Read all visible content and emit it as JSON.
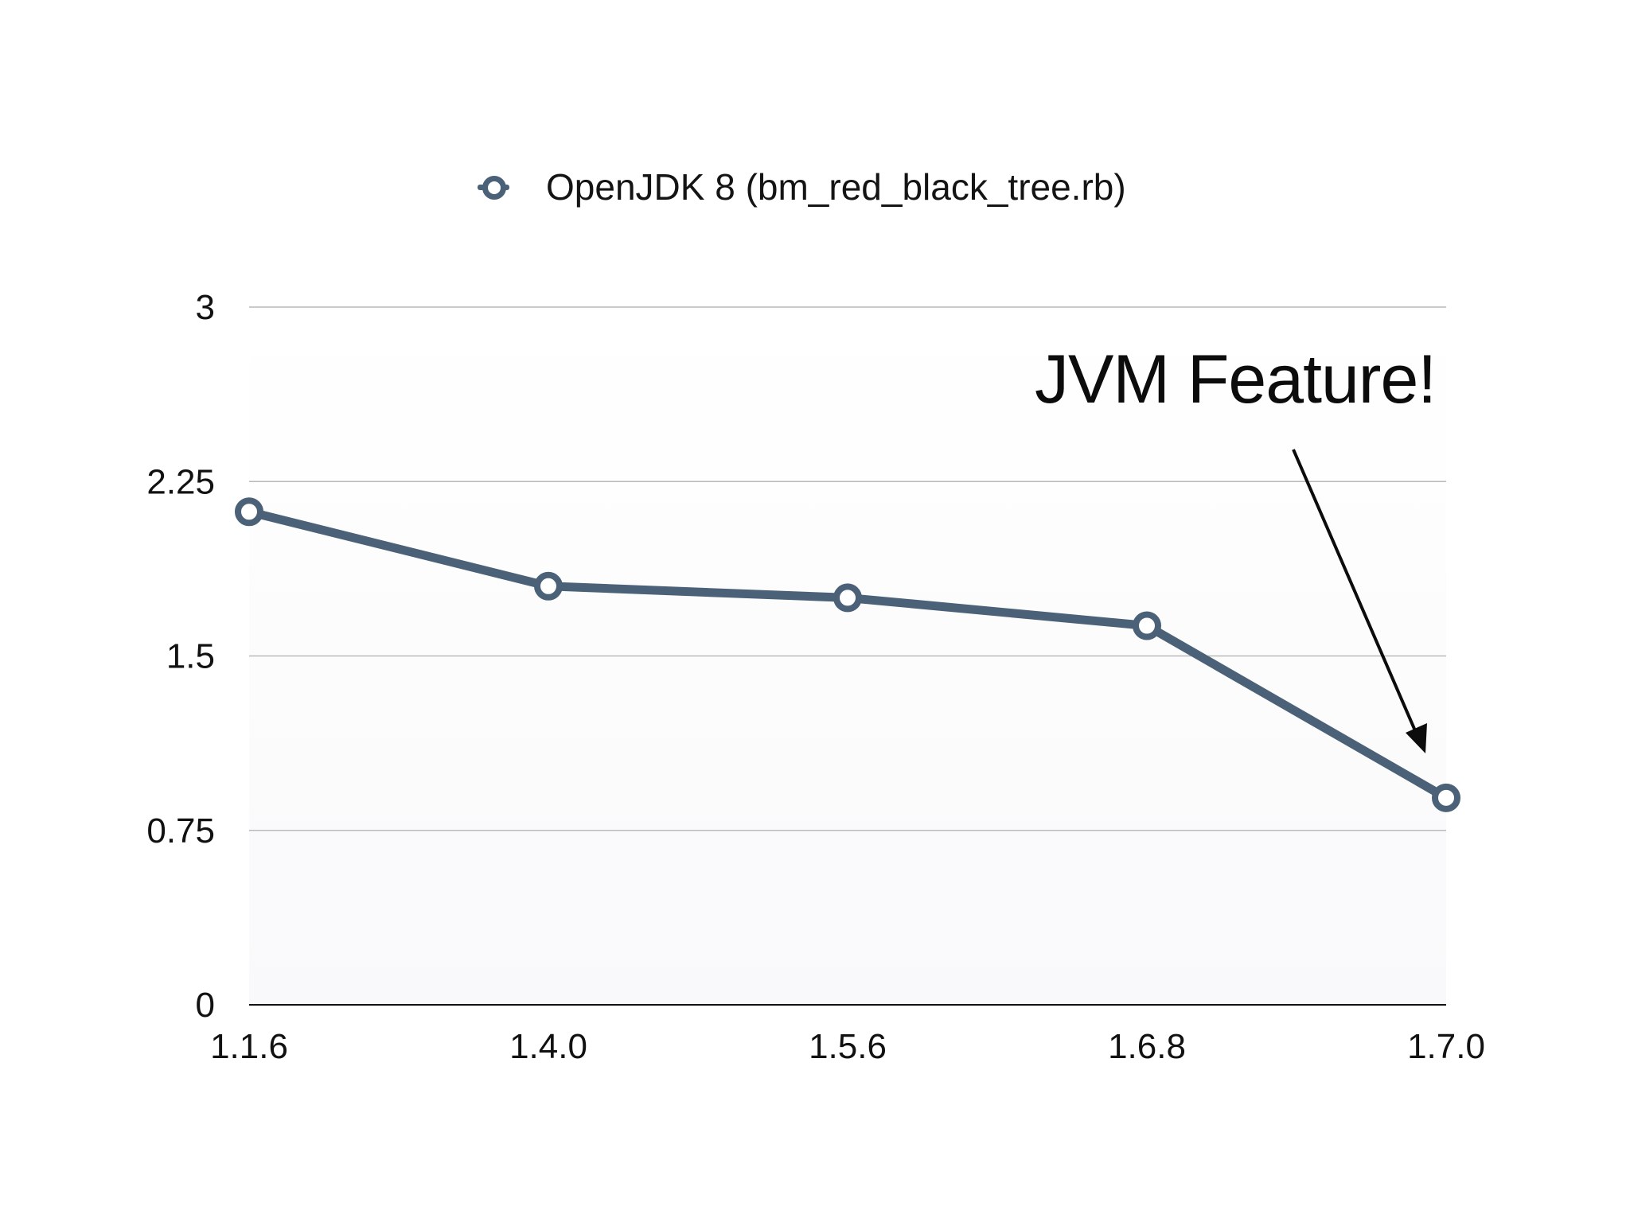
{
  "chart_data": {
    "type": "line",
    "title": "",
    "xlabel": "",
    "ylabel": "",
    "categories": [
      "1.1.6",
      "1.4.0",
      "1.5.6",
      "1.6.8",
      "1.7.0"
    ],
    "series": [
      {
        "name": "OpenJDK 8 (bm_red_black_tree.rb)",
        "values": [
          2.12,
          1.8,
          1.75,
          1.63,
          0.89
        ],
        "color": "#4a6178"
      }
    ],
    "y_ticks": [
      "0",
      "0.75",
      "1.5",
      "2.25",
      "3"
    ],
    "ylim": [
      0,
      3
    ],
    "grid": true,
    "legend_position": "top-center",
    "annotation": {
      "text": "JVM Feature!",
      "points_to": "1.7.0"
    }
  }
}
